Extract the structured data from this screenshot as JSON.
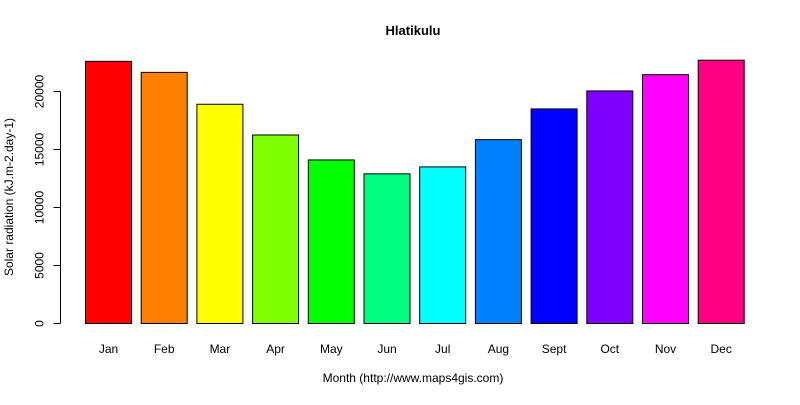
{
  "chart_data": {
    "type": "bar",
    "title": "Hlatikulu",
    "xlabel": "Month (http://www.maps4gis.com)",
    "ylabel": "Solar radiation (kJ.m-2.day-1)",
    "ylim": [
      0,
      23000
    ],
    "yticks": [
      0,
      5000,
      10000,
      15000,
      20000
    ],
    "grid": false,
    "legend": "none",
    "categories": [
      "Jan",
      "Feb",
      "Mar",
      "Apr",
      "May",
      "Jun",
      "Jul",
      "Aug",
      "Sept",
      "Oct",
      "Nov",
      "Dec"
    ],
    "values": [
      22600,
      21650,
      18900,
      16250,
      14100,
      12900,
      13500,
      15850,
      18500,
      20050,
      21450,
      22700
    ],
    "colors": [
      "#FF0000",
      "#FF8000",
      "#FFFF00",
      "#80FF00",
      "#00FF00",
      "#00FF80",
      "#00FFFF",
      "#0080FF",
      "#0000FF",
      "#8000FF",
      "#FF00FF",
      "#FF0080"
    ]
  }
}
